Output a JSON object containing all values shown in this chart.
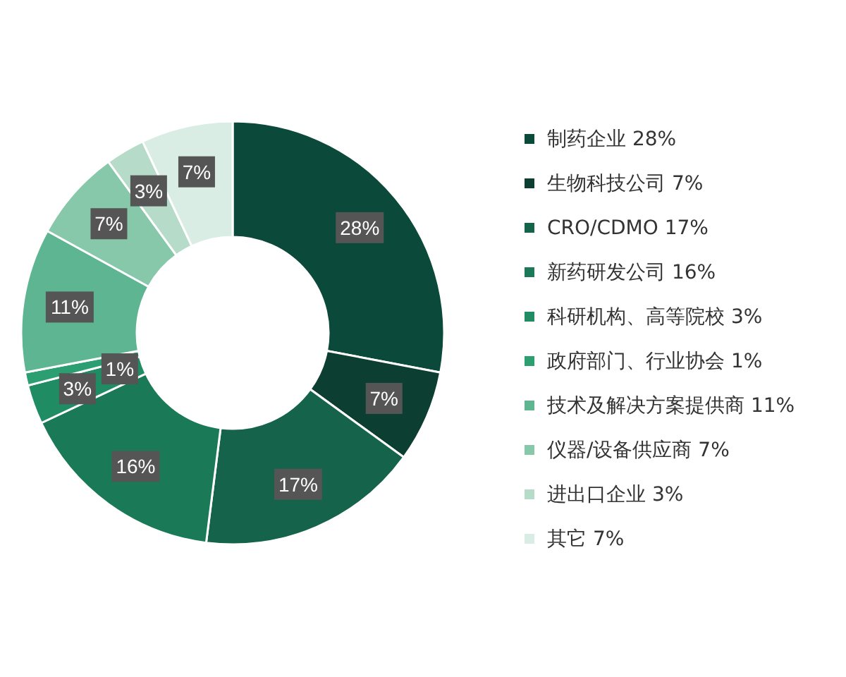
{
  "chart_data": {
    "type": "donut",
    "categories": [
      "制药企业 28%",
      "生物科技公司 7%",
      "CRO/CDMO 17%",
      "新药研发公司 16%",
      "科研机构、高等院校 3%",
      "政府部门、行业协会 1%",
      "技术及解决方案提供商 11%",
      "仪器/设备供应商 7%",
      "进出口企业 3%",
      "其它 7%"
    ],
    "values": [
      28,
      7,
      17,
      16,
      3,
      1,
      11,
      7,
      3,
      7
    ],
    "value_labels": [
      "28%",
      "7%",
      "17%",
      "16%",
      "3%",
      "1%",
      "11%",
      "7%",
      "3%",
      "7%"
    ],
    "colors": [
      "#0b4a3a",
      "#0c3f31",
      "#15634a",
      "#1a7a58",
      "#208c64",
      "#2b9f71",
      "#5db591",
      "#86c8a9",
      "#b6dcc9",
      "#d9ede4"
    ],
    "legend": "right"
  }
}
